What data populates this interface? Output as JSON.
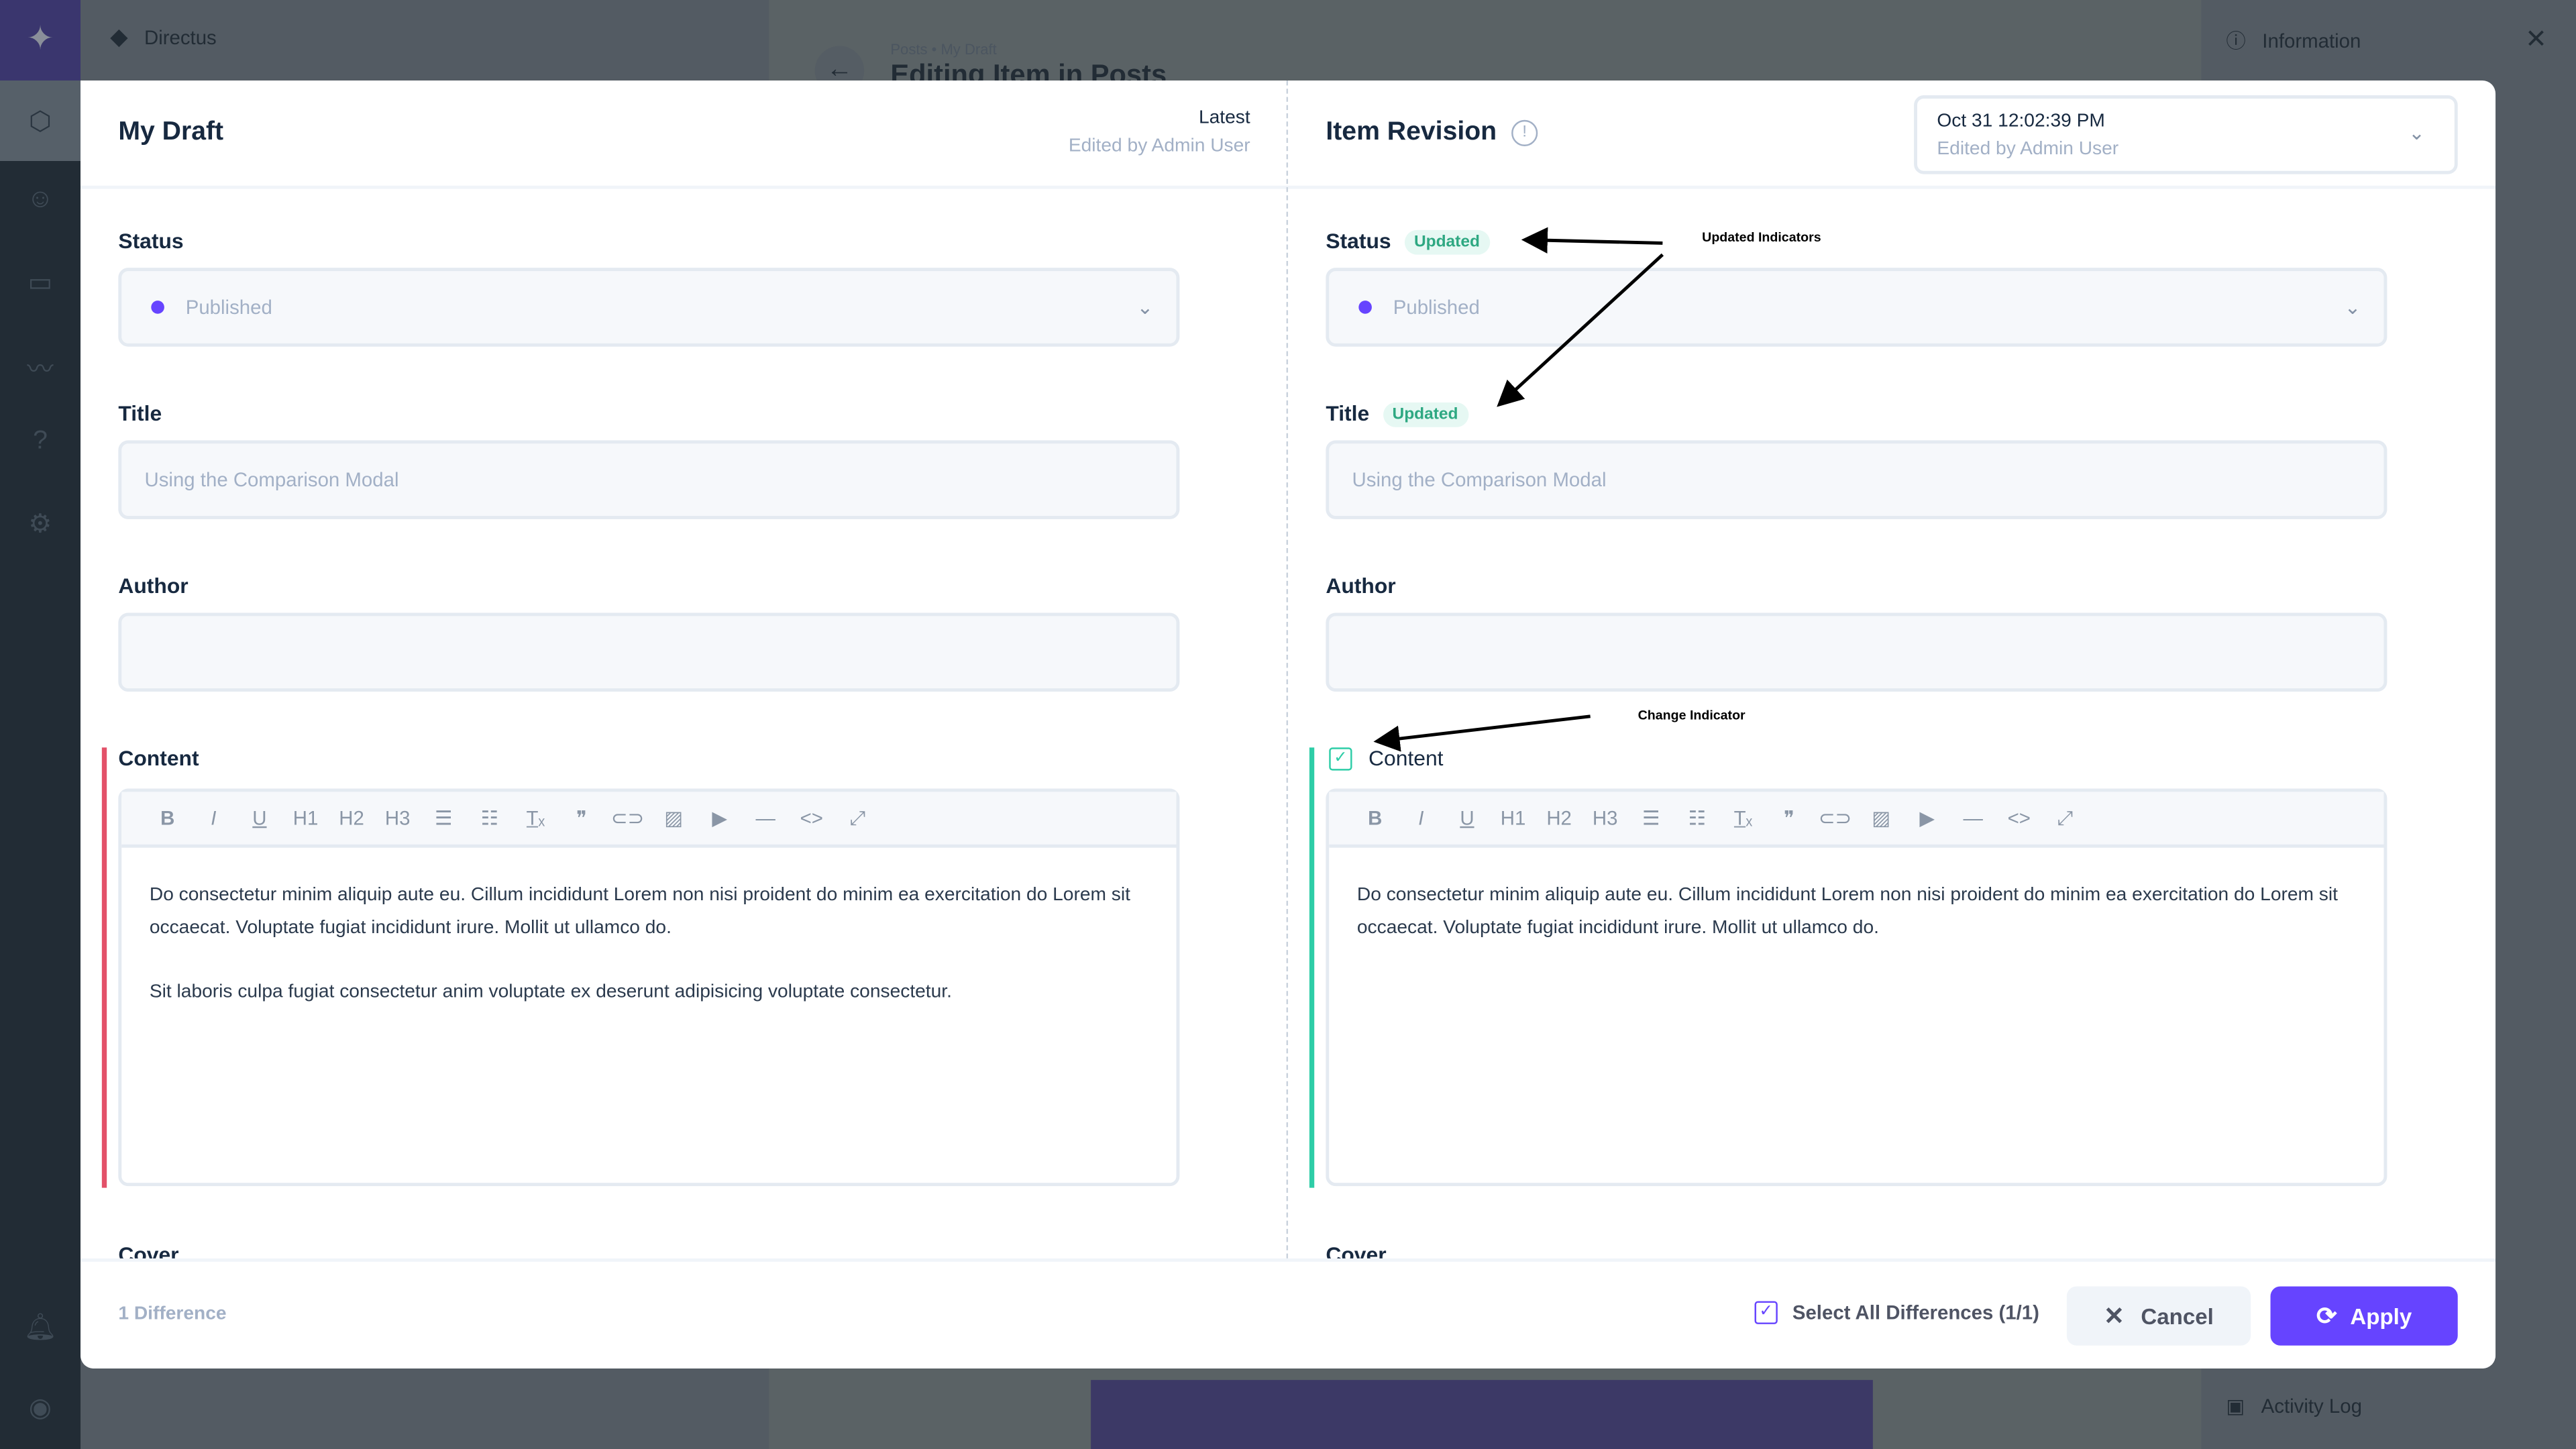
{
  "background": {
    "project_name": "Directus",
    "breadcrumb": "Posts • My Draft",
    "page_title": "Editing Item in Posts",
    "sidebar_info": "Information",
    "sidebar_activity": "Activity Log"
  },
  "nav": {
    "icons": [
      "directus-logo-icon",
      "content-box-icon",
      "users-icon",
      "folder-icon",
      "insights-icon",
      "help-icon",
      "settings-icon",
      "notifications-bell-icon",
      "user-avatar-icon"
    ]
  },
  "left": {
    "title": "My Draft",
    "version_label": "Latest",
    "version_meta": "Edited by Admin User",
    "fields": {
      "status_label": "Status",
      "status_value": "Published",
      "title_label": "Title",
      "title_value": "Using the Comparison Modal",
      "author_label": "Author",
      "author_value": "",
      "content_label": "Content",
      "content_paragraphs": [
        "Do consectetur minim aliquip aute eu. Cillum incididunt Lorem non nisi proident do minim ea exercitation do Lorem sit occaecat. Voluptate fugiat incididunt irure. Mollit ut ullamco do.",
        "Sit laboris culpa fugiat consectetur anim voluptate ex deserunt adipisicing voluptate consectetur."
      ],
      "cover_label": "Cover"
    }
  },
  "right": {
    "title": "Item Revision",
    "revision_date": "Oct 31 12:02:39 PM",
    "revision_meta": "Edited by Admin User",
    "updated_badge": "Updated",
    "fields": {
      "status_label": "Status",
      "status_value": "Published",
      "title_label": "Title",
      "title_value": "Using the Comparison Modal",
      "author_label": "Author",
      "author_value": "",
      "content_label": "Content",
      "content_checked": true,
      "content_paragraphs": [
        "Do consectetur minim aliquip aute eu. Cillum incididunt Lorem non nisi proident do minim ea exercitation do Lorem sit occaecat. Voluptate fugiat incididunt irure. Mollit ut ullamco do."
      ],
      "cover_label": "Cover"
    }
  },
  "toolbar": [
    "B",
    "I",
    "U",
    "H1",
    "H2",
    "H3",
    "ol",
    "ul",
    "Tx",
    "❞",
    "link",
    "image",
    "media",
    "—",
    "<>",
    "fullscreen"
  ],
  "footer": {
    "difference_count": "1 Difference",
    "select_all": "Select All Differences (1/1)",
    "select_all_checked": true,
    "cancel": "Cancel",
    "apply": "Apply"
  },
  "annotations": {
    "updated": "Updated Indicators",
    "change": "Change Indicator"
  },
  "colors": {
    "accent": "#6644ff",
    "updated": "#2ea882",
    "change_bar_left": "#e35169",
    "change_bar_right": "#2ecda7"
  }
}
